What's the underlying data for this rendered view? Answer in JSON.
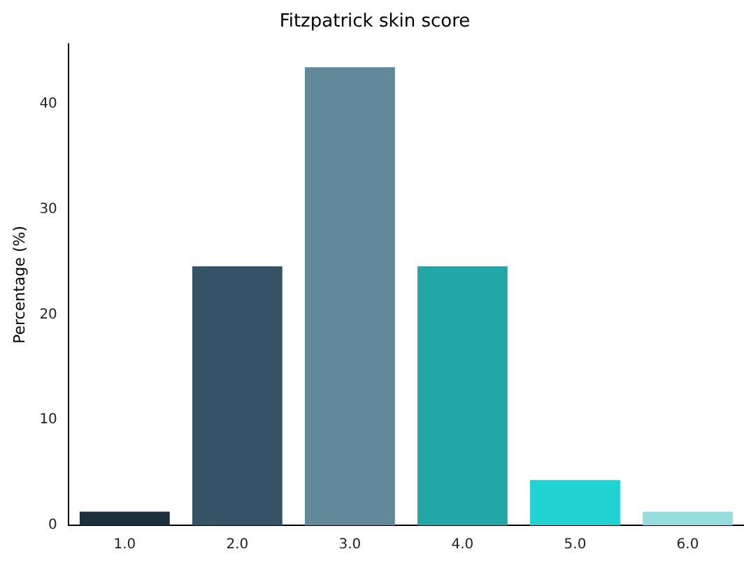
{
  "chart_data": {
    "type": "bar",
    "title": "Fitzpatrick skin score",
    "ylabel": "Percentage (%)",
    "categories": [
      "1.0",
      "2.0",
      "3.0",
      "4.0",
      "5.0",
      "6.0"
    ],
    "values": [
      1.3,
      24.6,
      43.5,
      24.6,
      4.3,
      1.3
    ],
    "colors": [
      "#1b2f3a",
      "#355366",
      "#62899a",
      "#22a6a6",
      "#1fd3d3",
      "#95dedd"
    ],
    "ylim": [
      0,
      45.7
    ],
    "yticks": [
      0,
      10,
      20,
      30,
      40
    ],
    "grid": false,
    "legend": false
  }
}
